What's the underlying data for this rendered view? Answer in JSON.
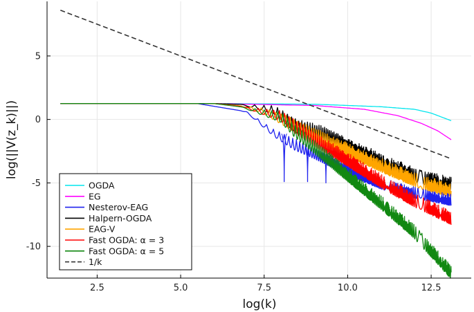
{
  "chart_data": {
    "type": "line",
    "title": "",
    "xlabel": "log(k)",
    "ylabel": "log(||V(z_k)||)",
    "xlim": [
      1.0,
      13.7
    ],
    "ylim": [
      -12.5,
      9.3
    ],
    "xticks": [
      "2.5",
      "5.0",
      "7.5",
      "10.0",
      "12.5"
    ],
    "yticks": [
      "5",
      "0",
      "-5",
      "-10"
    ],
    "grid": true,
    "legend_position": "bottom-left",
    "series": [
      {
        "name": "OGDA",
        "color": "#00e5ee",
        "x": [
          1.4,
          6.0,
          9.0,
          11.0,
          12.0,
          12.5,
          13.1
        ],
        "y": [
          1.25,
          1.25,
          1.2,
          1.0,
          0.8,
          0.5,
          -0.1
        ]
      },
      {
        "name": "EG",
        "color": "#ff00ff",
        "x": [
          1.4,
          6.0,
          9.0,
          10.5,
          11.5,
          12.2,
          12.7,
          13.1
        ],
        "y": [
          1.25,
          1.25,
          1.1,
          0.8,
          0.3,
          -0.3,
          -0.9,
          -1.6
        ]
      },
      {
        "name": "Nesterov-EAG",
        "color": "#1f22ee",
        "x": [
          1.4,
          5.5,
          7.0,
          7.8,
          9.0,
          10.0,
          11.0,
          12.0,
          13.1
        ],
        "y": [
          1.25,
          1.25,
          0.6,
          -0.8,
          -2.2,
          -3.5,
          -4.6,
          -5.3,
          -5.9
        ],
        "dips": [
          [
            8.1,
            -4.9
          ],
          [
            8.8,
            -4.9
          ],
          [
            9.35,
            -5.0
          ]
        ]
      },
      {
        "name": "Halpern-OGDA",
        "color": "#000000",
        "x": [
          1.4,
          6.0,
          7.8,
          8.5,
          9.3,
          10.3,
          11.3,
          12.2,
          13.1
        ],
        "y": [
          1.25,
          1.25,
          1.1,
          0.0,
          -0.5,
          -1.8,
          -3.0,
          -4.0,
          -4.5
        ]
      },
      {
        "name": "EAG-V",
        "color": "#ffa500",
        "x": [
          1.4,
          6.0,
          7.5,
          8.3,
          9.3,
          10.3,
          11.3,
          12.2,
          13.1
        ],
        "y": [
          1.25,
          1.25,
          0.9,
          0.2,
          -1.0,
          -2.2,
          -3.4,
          -4.4,
          -5.0
        ]
      },
      {
        "name": "Fast OGDA: α = 3",
        "color": "#ff0000",
        "x": [
          1.4,
          6.0,
          8.0,
          9.0,
          10.0,
          11.0,
          12.0,
          13.1
        ],
        "y": [
          1.25,
          1.25,
          0.7,
          -1.0,
          -2.6,
          -4.3,
          -5.8,
          -7.2
        ]
      },
      {
        "name": "Fast OGDA: α = 5",
        "color": "#118811",
        "x": [
          1.4,
          6.0,
          8.0,
          9.0,
          10.0,
          11.0,
          12.0,
          13.1
        ],
        "y": [
          1.25,
          1.25,
          0.6,
          -1.6,
          -3.8,
          -6.0,
          -8.3,
          -11.5
        ]
      },
      {
        "name": "1/k",
        "color": "#333333",
        "dash": true,
        "x": [
          1.4,
          13.1
        ],
        "y": [
          8.6,
          -3.1
        ]
      }
    ]
  }
}
